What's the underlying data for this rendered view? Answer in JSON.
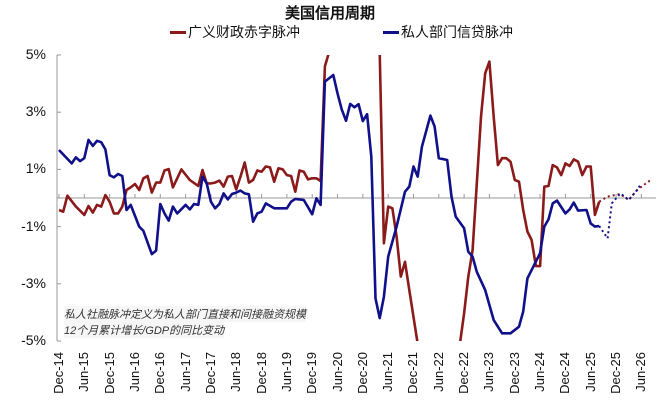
{
  "chart_data": {
    "type": "line",
    "title": "美国信用周期",
    "ylabel": "",
    "xlabel": "",
    "ylim": [
      -5,
      5
    ],
    "xlim": [
      "2014-12",
      "2026-08"
    ],
    "yticks": [
      "5%",
      "3%",
      "1%",
      "-1%",
      "-3%",
      "-5%"
    ],
    "ytick_values": [
      5,
      3,
      1,
      -1,
      -3,
      -5
    ],
    "xticks": [
      "Dec-14",
      "Jun-15",
      "Dec-15",
      "Jun-16",
      "Dec-16",
      "Jun-17",
      "Dec-17",
      "Jun-18",
      "Dec-18",
      "Jun-19",
      "Dec-19",
      "Jun-20",
      "Dec-20",
      "Jun-21",
      "Dec-21",
      "Jun-22",
      "Dec-22",
      "Jun-23",
      "Dec-23",
      "Jun-24",
      "Dec-24",
      "Jun-25",
      "Dec-25",
      "Jun-26"
    ],
    "grid": false,
    "legend_placement": "top",
    "annotation": [
      "私人社融脉冲定义为私人部门直接和间接融资规模",
      "12个月累计增长/GDP的同比变动"
    ],
    "series": [
      {
        "name": "广义财政赤字脉冲",
        "color": "#8b1a1a",
        "points": [
          [
            "2014-12",
            -0.42
          ],
          [
            "2015-01",
            -0.48
          ],
          [
            "2015-02",
            0.08
          ],
          [
            "2015-04",
            -0.3
          ],
          [
            "2015-06",
            -0.59
          ],
          [
            "2015-07",
            -0.28
          ],
          [
            "2015-08",
            -0.51
          ],
          [
            "2015-09",
            -0.24
          ],
          [
            "2015-10",
            -0.3
          ],
          [
            "2015-11",
            0.1
          ],
          [
            "2015-12",
            -0.13
          ],
          [
            "2016-01",
            -0.54
          ],
          [
            "2016-02",
            -0.54
          ],
          [
            "2016-03",
            -0.3
          ],
          [
            "2016-04",
            0.28
          ],
          [
            "2016-05",
            0.37
          ],
          [
            "2016-06",
            0.49
          ],
          [
            "2016-07",
            0.28
          ],
          [
            "2016-08",
            0.69
          ],
          [
            "2016-09",
            0.77
          ],
          [
            "2016-10",
            0.19
          ],
          [
            "2016-11",
            0.54
          ],
          [
            "2016-12",
            0.54
          ],
          [
            "2017-01",
            0.96
          ],
          [
            "2017-02",
            1.01
          ],
          [
            "2017-03",
            0.37
          ],
          [
            "2017-05",
            1.0
          ],
          [
            "2017-07",
            0.63
          ],
          [
            "2017-09",
            0.42
          ],
          [
            "2017-10",
            0.98
          ],
          [
            "2017-11",
            0.51
          ],
          [
            "2017-12",
            0.51
          ],
          [
            "2018-01",
            0.54
          ],
          [
            "2018-02",
            0.61
          ],
          [
            "2018-03",
            0.4
          ],
          [
            "2018-04",
            0.75
          ],
          [
            "2018-05",
            0.77
          ],
          [
            "2018-06",
            0.3
          ],
          [
            "2018-07",
            0.75
          ],
          [
            "2018-08",
            1.24
          ],
          [
            "2018-09",
            0.54
          ],
          [
            "2018-10",
            0.63
          ],
          [
            "2018-11",
            0.96
          ],
          [
            "2018-12",
            0.92
          ],
          [
            "2019-01",
            1.1
          ],
          [
            "2019-02",
            1.07
          ],
          [
            "2019-03",
            0.57
          ],
          [
            "2019-04",
            1.04
          ],
          [
            "2019-05",
            1.0
          ],
          [
            "2019-06",
            0.8
          ],
          [
            "2019-07",
            0.77
          ],
          [
            "2019-08",
            0.22
          ],
          [
            "2019-09",
            0.96
          ],
          [
            "2019-10",
            0.92
          ],
          [
            "2019-11",
            0.65
          ],
          [
            "2019-12",
            0.69
          ],
          [
            "2020-01",
            0.69
          ],
          [
            "2020-02",
            0.59
          ],
          [
            "2020-03",
            4.6
          ],
          [
            "2020-04",
            5.1
          ],
          [
            "2020-10",
            null
          ],
          [
            "2021-04",
            5.1
          ],
          [
            "2021-05",
            -1.58
          ],
          [
            "2021-06",
            -0.3
          ],
          [
            "2021-07",
            -0.36
          ],
          [
            "2021-08",
            -1.35
          ],
          [
            "2021-09",
            -2.75
          ],
          [
            "2021-10",
            -2.23
          ],
          [
            "2021-11",
            -3.22
          ],
          [
            "2022-01",
            -5.1
          ],
          [
            "2022-06",
            null
          ],
          [
            "2022-11",
            -5.1
          ],
          [
            "2022-12",
            -4.03
          ],
          [
            "2023-01",
            -2.75
          ],
          [
            "2023-02",
            -1.82
          ],
          [
            "2023-04",
            2.84
          ],
          [
            "2023-05",
            4.36
          ],
          [
            "2023-06",
            4.77
          ],
          [
            "2023-07",
            2.84
          ],
          [
            "2023-08",
            1.15
          ],
          [
            "2023-09",
            1.39
          ],
          [
            "2023-10",
            1.39
          ],
          [
            "2023-11",
            1.27
          ],
          [
            "2023-12",
            0.63
          ],
          [
            "2024-01",
            0.57
          ],
          [
            "2024-02",
            -0.42
          ],
          [
            "2024-03",
            -1.17
          ],
          [
            "2024-04",
            -1.47
          ],
          [
            "2024-05",
            -2.38
          ],
          [
            "2024-06",
            -2.38
          ],
          [
            "2024-07",
            0.4
          ],
          [
            "2024-08",
            0.42
          ],
          [
            "2024-09",
            1.15
          ],
          [
            "2024-10",
            1.07
          ],
          [
            "2024-11",
            0.8
          ],
          [
            "2024-12",
            1.21
          ],
          [
            "2025-01",
            1.12
          ],
          [
            "2025-02",
            1.35
          ],
          [
            "2025-03",
            1.27
          ],
          [
            "2025-04",
            0.8
          ],
          [
            "2025-05",
            1.1
          ],
          [
            "2025-06",
            1.1
          ],
          [
            "2025-07",
            -0.59
          ],
          [
            "2025-08",
            -0.13
          ]
        ],
        "forecast": [
          [
            "2025-08",
            -0.13
          ],
          [
            "2025-10",
            0.05
          ],
          [
            "2026-01",
            0.14
          ],
          [
            "2026-03",
            -0.07
          ],
          [
            "2026-05",
            0.28
          ],
          [
            "2026-08",
            0.61
          ]
        ]
      },
      {
        "name": "私人部门信贷脉冲",
        "color": "#10108a",
        "points": [
          [
            "2014-12",
            1.68
          ],
          [
            "2015-03",
            1.21
          ],
          [
            "2015-04",
            1.42
          ],
          [
            "2015-05",
            1.29
          ],
          [
            "2015-06",
            1.39
          ],
          [
            "2015-07",
            2.03
          ],
          [
            "2015-08",
            1.82
          ],
          [
            "2015-09",
            2.0
          ],
          [
            "2015-10",
            1.95
          ],
          [
            "2015-11",
            1.7
          ],
          [
            "2015-12",
            0.8
          ],
          [
            "2016-01",
            0.72
          ],
          [
            "2016-02",
            0.84
          ],
          [
            "2016-03",
            0.77
          ],
          [
            "2016-04",
            -0.42
          ],
          [
            "2016-05",
            -0.24
          ],
          [
            "2016-07",
            -1.0
          ],
          [
            "2016-08",
            -1.15
          ],
          [
            "2016-10",
            -1.96
          ],
          [
            "2016-11",
            -1.84
          ],
          [
            "2016-12",
            -0.21
          ],
          [
            "2017-01",
            -0.54
          ],
          [
            "2017-02",
            -0.79
          ],
          [
            "2017-03",
            -0.3
          ],
          [
            "2017-04",
            -0.54
          ],
          [
            "2017-06",
            -0.24
          ],
          [
            "2017-07",
            -0.4
          ],
          [
            "2017-08",
            -0.21
          ],
          [
            "2017-09",
            -0.24
          ],
          [
            "2017-10",
            0.75
          ],
          [
            "2017-11",
            0.51
          ],
          [
            "2017-12",
            -0.13
          ],
          [
            "2018-01",
            -0.36
          ],
          [
            "2018-02",
            -0.21
          ],
          [
            "2018-03",
            0.16
          ],
          [
            "2018-04",
            -0.05
          ],
          [
            "2018-05",
            0.14
          ],
          [
            "2018-06",
            0.19
          ],
          [
            "2018-07",
            0.26
          ],
          [
            "2018-08",
            0.16
          ],
          [
            "2018-09",
            0.13
          ],
          [
            "2018-10",
            -0.83
          ],
          [
            "2018-11",
            -0.54
          ],
          [
            "2018-12",
            -0.48
          ],
          [
            "2019-01",
            -0.19
          ],
          [
            "2019-03",
            -0.36
          ],
          [
            "2019-06",
            -0.36
          ],
          [
            "2019-07",
            -0.13
          ],
          [
            "2019-08",
            -0.03
          ],
          [
            "2019-10",
            -0.07
          ],
          [
            "2019-12",
            -0.57
          ],
          [
            "2020-01",
            -0.01
          ],
          [
            "2020-02",
            -0.24
          ],
          [
            "2020-03",
            4.07
          ],
          [
            "2020-05",
            4.3
          ],
          [
            "2020-06",
            3.66
          ],
          [
            "2020-07",
            3.1
          ],
          [
            "2020-08",
            2.7
          ],
          [
            "2020-09",
            3.29
          ],
          [
            "2020-10",
            3.17
          ],
          [
            "2020-11",
            3.28
          ],
          [
            "2020-12",
            2.69
          ],
          [
            "2021-01",
            2.93
          ],
          [
            "2021-02",
            1.45
          ],
          [
            "2021-03",
            -3.51
          ],
          [
            "2021-04",
            -4.2
          ],
          [
            "2021-05",
            -3.45
          ],
          [
            "2021-06",
            -2.05
          ],
          [
            "2021-08",
            -1.0
          ],
          [
            "2021-10",
            0.22
          ],
          [
            "2021-11",
            0.4
          ],
          [
            "2021-12",
            1.1
          ],
          [
            "2022-01",
            0.75
          ],
          [
            "2022-02",
            1.79
          ],
          [
            "2022-04",
            2.88
          ],
          [
            "2022-05",
            2.5
          ],
          [
            "2022-06",
            1.39
          ],
          [
            "2022-08",
            1.33
          ],
          [
            "2022-09",
            0.05
          ],
          [
            "2022-10",
            -0.65
          ],
          [
            "2022-12",
            -1.06
          ],
          [
            "2023-01",
            -1.88
          ],
          [
            "2023-02",
            -2.05
          ],
          [
            "2023-03",
            -2.58
          ],
          [
            "2023-05",
            -3.22
          ],
          [
            "2023-07",
            -4.27
          ],
          [
            "2023-09",
            -4.73
          ],
          [
            "2023-11",
            -4.73
          ],
          [
            "2024-01",
            -4.5
          ],
          [
            "2024-02",
            -3.97
          ],
          [
            "2024-03",
            -2.81
          ],
          [
            "2024-04",
            -2.52
          ],
          [
            "2024-06",
            -1.93
          ],
          [
            "2024-07",
            -1.0
          ],
          [
            "2024-08",
            -0.75
          ],
          [
            "2024-09",
            -0.19
          ],
          [
            "2024-10",
            -0.09
          ],
          [
            "2024-12",
            -0.54
          ],
          [
            "2025-01",
            -0.4
          ],
          [
            "2025-02",
            -0.16
          ],
          [
            "2025-03",
            -0.44
          ],
          [
            "2025-05",
            -0.42
          ],
          [
            "2025-06",
            -0.89
          ],
          [
            "2025-07",
            -1.0
          ],
          [
            "2025-08",
            -0.98
          ]
        ],
        "forecast": [
          [
            "2025-08",
            -0.98
          ],
          [
            "2025-10",
            -1.41
          ],
          [
            "2025-11",
            -0.19
          ],
          [
            "2026-01",
            0.16
          ],
          [
            "2026-02",
            0.05
          ],
          [
            "2026-03",
            -0.07
          ],
          [
            "2026-05",
            0.28
          ],
          [
            "2026-06",
            0.51
          ]
        ]
      }
    ]
  }
}
